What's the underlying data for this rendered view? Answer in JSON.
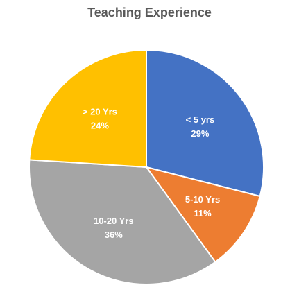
{
  "chart_data": {
    "type": "pie",
    "title": "Teaching Experience",
    "slices": [
      {
        "label": "< 5 yrs",
        "value": 29,
        "value_label": "29%",
        "color": "#4472C4"
      },
      {
        "label": "5-10 Yrs",
        "value": 11,
        "value_label": "11%",
        "color": "#ED7D31"
      },
      {
        "label": "10-20 Yrs",
        "value": 36,
        "value_label": "36%",
        "color": "#A5A5A5"
      },
      {
        "label": "> 20 Yrs",
        "value": 24,
        "value_label": "24%",
        "color": "#FFC000"
      }
    ],
    "start_angle": "12 o'clock",
    "direction": "clockwise",
    "legend": "none",
    "slice_separator_color": "#ffffff"
  }
}
